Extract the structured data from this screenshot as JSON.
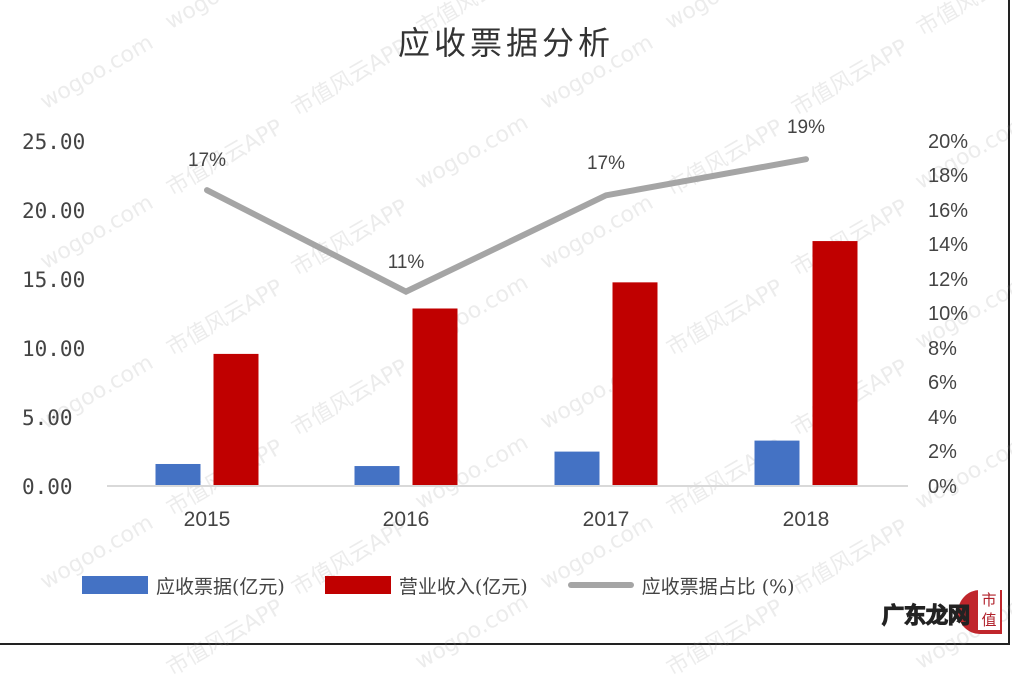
{
  "title": "应收票据分析",
  "left_axis": {
    "ticks": [
      "25.00",
      "20.00",
      "15.00",
      "10.00",
      "5.00",
      "0.00"
    ]
  },
  "right_axis": {
    "ticks": [
      "20%",
      "18%",
      "16%",
      "14%",
      "12%",
      "10%",
      "8%",
      "6%",
      "4%",
      "2%",
      "0%"
    ]
  },
  "x_axis": {
    "ticks": [
      "2015",
      "2016",
      "2017",
      "2018"
    ]
  },
  "data_labels": [
    "17%",
    "11%",
    "17%",
    "19%"
  ],
  "legend": {
    "items": [
      {
        "label": "应收票据(亿元)",
        "color": "#4472c4",
        "kind": "bar"
      },
      {
        "label": "营业收入(亿元)",
        "color": "#c00000",
        "kind": "bar"
      },
      {
        "label": "应收票据占比 (%)",
        "color": "#a5a5a5",
        "kind": "line"
      }
    ]
  },
  "watermark": {
    "texts": [
      "市值风云APP",
      "wogoo.com"
    ]
  },
  "logo": {
    "text": "广东龙网",
    "badge": "市值"
  },
  "colors": {
    "receivables": "#4472c4",
    "revenue": "#c00000",
    "ratio_line": "#a5a5a5",
    "axis": "#d9d9d9"
  },
  "chart_data": {
    "type": "bar",
    "title": "应收票据分析",
    "categories": [
      "2015",
      "2016",
      "2017",
      "2018"
    ],
    "series": [
      {
        "name": "应收票据(亿元)",
        "type": "bar",
        "axis": "left",
        "values": [
          1.6,
          1.45,
          2.5,
          3.3
        ]
      },
      {
        "name": "营业收入(亿元)",
        "type": "bar",
        "axis": "left",
        "values": [
          9.6,
          12.9,
          14.8,
          17.8
        ]
      },
      {
        "name": "应收票据占比 (%)",
        "type": "line",
        "axis": "right",
        "values": [
          17,
          11,
          17,
          19
        ],
        "labels": [
          "17%",
          "11%",
          "17%",
          "19%"
        ]
      }
    ],
    "xlabel": "",
    "ylabel": "",
    "ylim": [
      0,
      25
    ],
    "y2lim": [
      0,
      20
    ],
    "y_ticks": [
      0,
      5,
      10,
      15,
      20,
      25
    ],
    "y2_ticks": [
      0,
      2,
      4,
      6,
      8,
      10,
      12,
      14,
      16,
      18,
      20
    ],
    "grid": false,
    "legend_position": "bottom"
  }
}
